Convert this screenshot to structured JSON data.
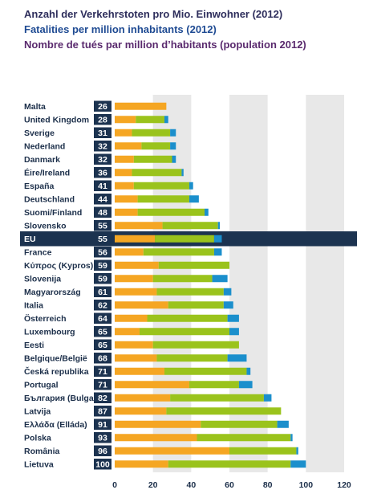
{
  "titles": {
    "de": "Anzahl der Verkehrstoten pro Mio. Einwohner (2012)",
    "en": "Fatalities per million inhabitants (2012)",
    "fr": "Nombre de tués par million d’habitants (population 2012)"
  },
  "colors": {
    "seg1": "#f5a623",
    "seg2": "#9ac31c",
    "seg3": "#1b8fcc",
    "highlight_row": "#1c3350",
    "value_box": "#1c3350",
    "grid_band": "#e8e8e8"
  },
  "chart_data": {
    "type": "bar",
    "orientation": "horizontal",
    "stacked": true,
    "xlim": [
      0,
      120
    ],
    "x_ticks": [
      0,
      20,
      40,
      60,
      80,
      100,
      120
    ],
    "highlight": "EU",
    "categories": [
      "Malta",
      "United Kingdom",
      "Sverige",
      "Nederland",
      "Danmark",
      "Éire/Ireland",
      "España",
      "Deutschland",
      "Suomi/Finland",
      "Slovensko",
      "EU",
      "France",
      "Κύπρος (Kypros)",
      "Slovenija",
      "Magyarország",
      "Italia",
      "Österreich",
      "Luxembourg",
      "Eesti",
      "Belgique/België",
      "Česká republika",
      "Portugal",
      "България (Bulgaria)",
      "Latvija",
      "Ελλάδα (Elláda)",
      "Polska",
      "România",
      "Lietuva"
    ],
    "totals": [
      26,
      28,
      31,
      32,
      32,
      36,
      41,
      44,
      48,
      55,
      55,
      56,
      59,
      59,
      61,
      62,
      64,
      65,
      65,
      68,
      71,
      71,
      82,
      87,
      91,
      93,
      96,
      100
    ],
    "series": [
      {
        "values": [
          27,
          11,
          9,
          14,
          10,
          9,
          10,
          12,
          12,
          25,
          21,
          15,
          23,
          20,
          22,
          28,
          17,
          13,
          20,
          22,
          26,
          39,
          29,
          27,
          45,
          43,
          60,
          28
        ]
      },
      {
        "values": [
          0,
          15,
          20,
          15,
          20,
          26,
          29,
          27,
          35,
          29,
          31,
          37,
          37,
          31,
          35,
          29,
          42,
          47,
          45,
          37,
          43,
          26,
          49,
          60,
          40,
          49,
          35,
          64
        ]
      },
      {
        "values": [
          0,
          2,
          3,
          3,
          2,
          1,
          2,
          5,
          2,
          1,
          4,
          4,
          0,
          8,
          4,
          5,
          6,
          5,
          0,
          10,
          2,
          7,
          4,
          0,
          6,
          1,
          1,
          8
        ]
      }
    ]
  }
}
